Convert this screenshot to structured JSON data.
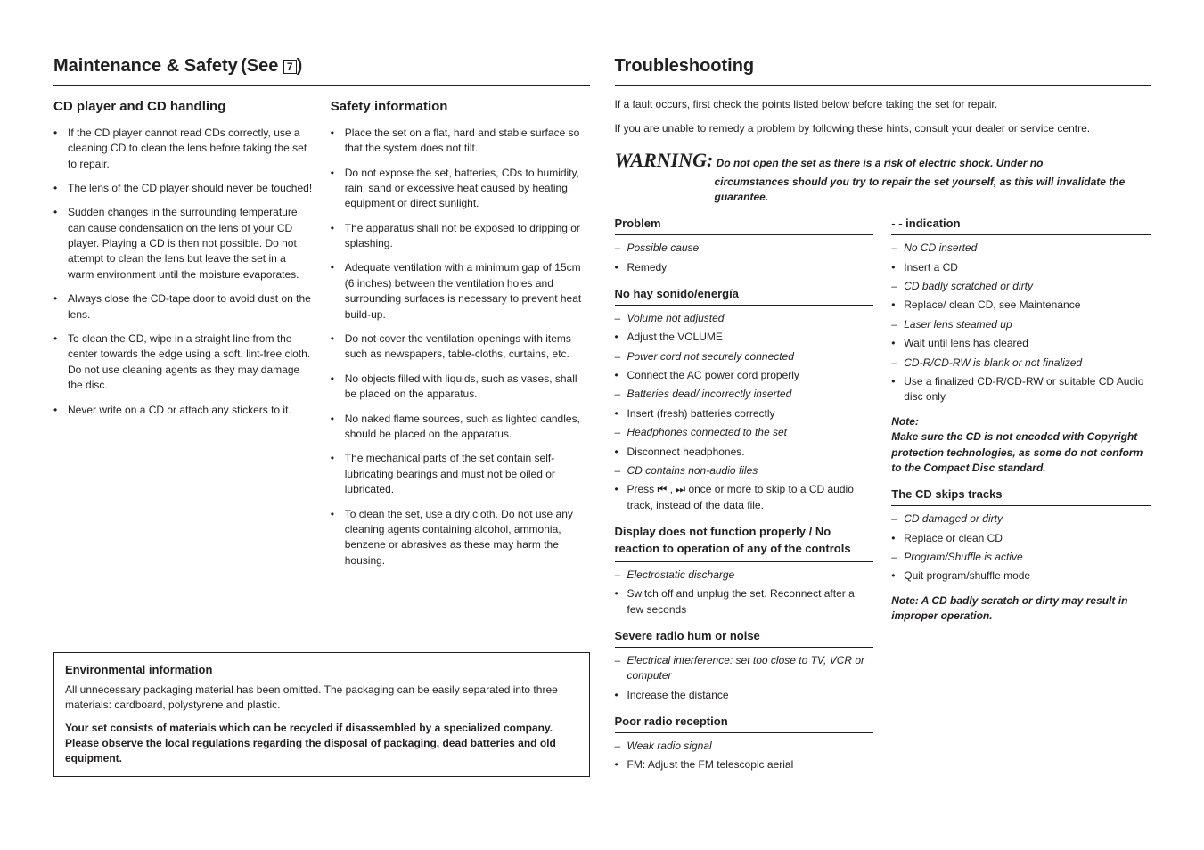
{
  "left": {
    "title_main": "Maintenance & Safety",
    "see_label": "(See",
    "boxed_num": "7",
    "see_close": ")",
    "col1": {
      "heading": "CD player and CD handling",
      "items": [
        "If the CD player cannot read CDs correctly, use a cleaning CD to clean the lens before taking the set to repair.",
        "The lens of the CD player should never be touched!",
        "Sudden changes in the surrounding temperature can cause condensation on the lens of your CD player. Playing a CD is then not possible. Do not attempt to clean the lens but leave the set in a warm environment until the moisture evaporates.",
        "Always close the CD-tape door to avoid dust on the lens.",
        "To clean the CD, wipe in a straight line from the center towards the edge using a soft, lint-free cloth. Do not use cleaning agents as they may damage the disc.",
        "Never write on a CD or attach any stickers to it."
      ]
    },
    "col2": {
      "heading": "Safety information",
      "items": [
        "Place the set on a flat, hard and stable surface so that the system does not tilt.",
        "Do not expose the set, batteries, CDs to humidity, rain, sand or excessive heat caused by heating equipment or direct sunlight.",
        "The apparatus shall not be exposed to dripping or splashing.",
        "Adequate ventilation with a minimum gap of 15cm (6 inches) between the ventilation holes and surrounding surfaces is necessary to prevent heat build-up.",
        "Do not cover the ventilation openings with items such as newspapers, table-cloths, curtains, etc.",
        "No objects filled with liquids, such as vases, shall be placed on the apparatus.",
        "No naked flame sources, such as lighted candles, should be placed on the apparatus.",
        "The mechanical parts of the set contain self-lubricating bearings and must not be oiled or lubricated.",
        "To clean the set, use a dry cloth. Do not use any cleaning agents containing alcohol, ammonia, benzene or abrasives as these may harm the housing."
      ]
    },
    "env": {
      "title": "Environmental information",
      "p1": "All unnecessary packaging material has been omitted. The packaging can be easily separated into three materials: cardboard, polystyrene and plastic.",
      "p2": "Your set consists of materials which can be recycled if disassembled by a specialized company. Please observe the local regulations regarding the disposal of packaging, dead batteries and old equipment."
    }
  },
  "right": {
    "title": "Troubleshooting",
    "intro1": "If a fault occurs, first check the points listed below before taking the set for repair.",
    "intro2": "If you are unable to remedy a problem by following these hints, consult your dealer or service centre.",
    "warning_word": "WARNING:",
    "warning_line1": "Do not open the set as there is a risk of electric shock. Under no",
    "warning_line2": "circumstances should you try to repair the set yourself, as this will invalidate the guarantee.",
    "colL": {
      "problem_label": "Problem",
      "possible_cause": "Possible cause",
      "remedy": "Remedy",
      "g1_title": "No hay sonido/energía",
      "g1": [
        {
          "t": "cause",
          "v": "Volume not adjusted"
        },
        {
          "t": "fix",
          "v": "Adjust the VOLUME"
        },
        {
          "t": "cause",
          "v": "Power cord not securely connected"
        },
        {
          "t": "fix",
          "v": "Connect the AC power cord properly"
        },
        {
          "t": "cause",
          "v": "Batteries dead/ incorrectly inserted"
        },
        {
          "t": "fix",
          "v": "Insert (fresh) batteries correctly"
        },
        {
          "t": "cause",
          "v": "Headphones connected to the set"
        },
        {
          "t": "fix",
          "v": "Disconnect headphones."
        },
        {
          "t": "cause",
          "v": "CD contains non-audio files"
        },
        {
          "t": "fix",
          "v": "Press ⏮ , ⏭ once or more to skip to a CD audio track, instead of the data file."
        }
      ],
      "g2_title": "Display does not function properly / No reaction to operation of any of the controls",
      "g2": [
        {
          "t": "cause",
          "v": "Electrostatic discharge"
        },
        {
          "t": "fix",
          "v": "Switch off and unplug the set. Reconnect after a few seconds"
        }
      ],
      "g3_title": "Severe radio hum or noise",
      "g3": [
        {
          "t": "cause",
          "v": "Electrical interference: set too close to TV, VCR or computer"
        },
        {
          "t": "fix",
          "v": "Increase the distance"
        }
      ],
      "g4_title": "Poor radio reception",
      "g4": [
        {
          "t": "cause",
          "v": "Weak radio signal"
        },
        {
          "t": "fix",
          "v": "FM: Adjust the FM telescopic aerial"
        }
      ]
    },
    "colR": {
      "indication_label": "indication",
      "top": [
        {
          "t": "cause",
          "v": "No CD inserted"
        },
        {
          "t": "fix",
          "v": "Insert a CD"
        },
        {
          "t": "cause",
          "v": "CD badly scratched or dirty"
        },
        {
          "t": "fix",
          "v": "Replace/ clean CD, see Maintenance"
        },
        {
          "t": "cause",
          "v": "Laser lens steamed up"
        },
        {
          "t": "fix",
          "v": "Wait until lens has cleared"
        },
        {
          "t": "cause",
          "v": "CD-R/CD-RW is blank or not finalized"
        },
        {
          "t": "fix",
          "v": "Use a finalized CD-R/CD-RW or suitable CD Audio disc only"
        }
      ],
      "note_label": "Note:",
      "note_body": "Make sure the CD is not encoded with Copyright protection technologies, as some do not conform to the Compact Disc standard.",
      "g5_title": "The CD skips tracks",
      "g5": [
        {
          "t": "cause",
          "v": "CD damaged or dirty"
        },
        {
          "t": "fix",
          "v": "Replace or clean CD"
        },
        {
          "t": "cause",
          "v": "Program/Shuffle is active"
        },
        {
          "t": "fix",
          "v": "Quit program/shuffle mode"
        }
      ],
      "note2": "Note: A CD badly scratch or dirty may result in improper operation."
    }
  }
}
